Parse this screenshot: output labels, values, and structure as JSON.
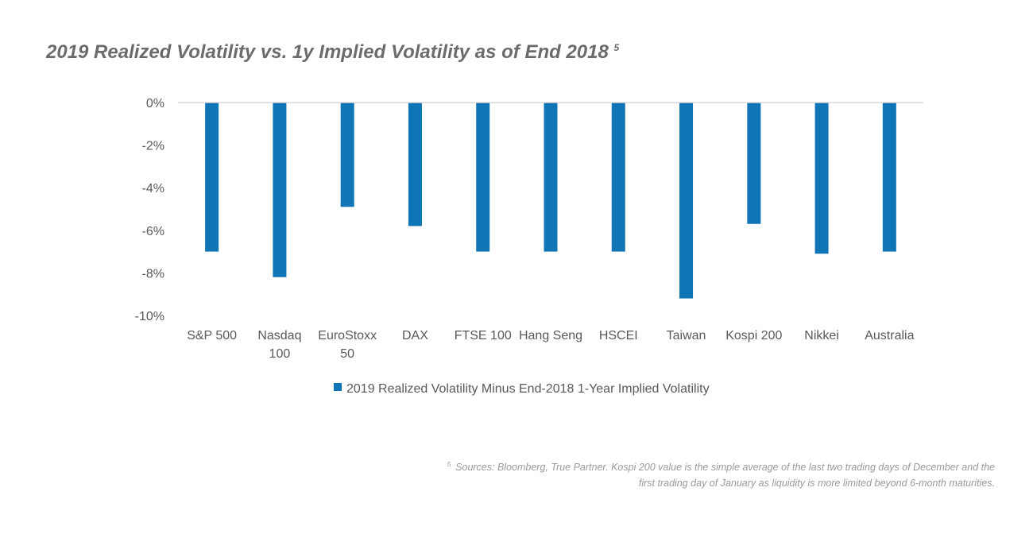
{
  "title": {
    "text": "2019 Realized Volatility vs. 1y Implied Volatility as of End 2018",
    "footnote_marker": "5"
  },
  "footnote": {
    "marker": "5",
    "line1": "Sources: Bloomberg, True Partner. Kospi 200 value is the simple average of the last two trading days of December and the",
    "line2": "first trading day of January as liquidity is more limited beyond 6-month maturities."
  },
  "chart_data": {
    "type": "bar",
    "categories": [
      [
        "S&P 500"
      ],
      [
        "Nasdaq",
        "100"
      ],
      [
        "EuroStoxx",
        "50"
      ],
      [
        "DAX"
      ],
      [
        "FTSE 100"
      ],
      [
        "Hang Seng"
      ],
      [
        "HSCEI"
      ],
      [
        "Taiwan"
      ],
      [
        "Kospi 200"
      ],
      [
        "Nikkei"
      ],
      [
        "Australia"
      ]
    ],
    "series": [
      {
        "name": "2019 Realized Volatility Minus End-2018 1-Year Implied Volatility",
        "values": [
          -7.0,
          -8.2,
          -4.9,
          -5.8,
          -7.0,
          -7.0,
          -7.0,
          -9.2,
          -5.7,
          -7.1,
          -7.0
        ],
        "color": "#0f75b7"
      }
    ],
    "yticks": [
      "0%",
      "-2%",
      "-4%",
      "-6%",
      "-8%",
      "-10%"
    ],
    "ylim": [
      -10,
      0
    ],
    "grid": false,
    "legend_position": "bottom"
  }
}
